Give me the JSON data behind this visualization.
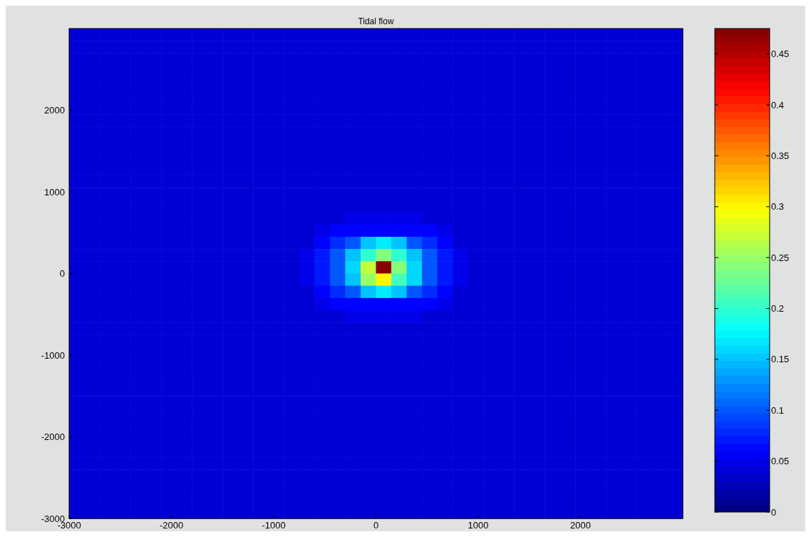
{
  "chart_data": {
    "type": "heatmap",
    "title": "Tidal flow",
    "x": [
      -2925,
      -2775,
      -2625,
      -2475,
      -2325,
      -2175,
      -2025,
      -1875,
      -1725,
      -1575,
      -1425,
      -1275,
      -1125,
      -975,
      -825,
      -675,
      -525,
      -375,
      -225,
      -75,
      75,
      225,
      375,
      525,
      675,
      825,
      975,
      1125,
      1275,
      1425,
      1575,
      1725,
      1875,
      2025,
      2175,
      2325,
      2475,
      2625,
      2775,
      2925
    ],
    "y": [
      2925,
      2775,
      2625,
      2475,
      2325,
      2175,
      2025,
      1875,
      1725,
      1575,
      1425,
      1275,
      1125,
      975,
      825,
      675,
      525,
      375,
      225,
      75,
      -75,
      -225,
      -375,
      -525,
      -675,
      -825,
      -975,
      -1125,
      -1275,
      -1425,
      -1575,
      -1725,
      -1875,
      -2025,
      -2175,
      -2325,
      -2475,
      -2625,
      -2775,
      -2925
    ],
    "xlim": [
      -3000,
      3000
    ],
    "xticks": [
      -3000,
      -2000,
      -1000,
      0,
      1000,
      2000
    ],
    "ylim": [
      -3000,
      3000
    ],
    "yticks": [
      -3000,
      -2000,
      -1000,
      0,
      1000,
      2000
    ],
    "clim": [
      0,
      0.475
    ],
    "cticks": [
      0,
      0.05,
      0.1,
      0.15,
      0.2,
      0.25,
      0.3,
      0.35,
      0.4,
      0.45
    ],
    "cells": [
      [
        0.04,
        0.04,
        0.04,
        0.04,
        0.04,
        0.04,
        0.04,
        0.04,
        0.04,
        0.04,
        0.04,
        0.04,
        0.04,
        0.04,
        0.04,
        0.04,
        0.04,
        0.04,
        0.04,
        0.04,
        0.04,
        0.04,
        0.04,
        0.04,
        0.04,
        0.04,
        0.04,
        0.04,
        0.04,
        0.04,
        0.04,
        0.04,
        0.04,
        0.04,
        0.04,
        0.04,
        0.04,
        0.04,
        0.04,
        0.04
      ],
      [
        0.04,
        0.04,
        0.04,
        0.04,
        0.04,
        0.04,
        0.04,
        0.04,
        0.04,
        0.04,
        0.04,
        0.04,
        0.04,
        0.04,
        0.04,
        0.04,
        0.04,
        0.04,
        0.04,
        0.04,
        0.04,
        0.04,
        0.04,
        0.04,
        0.04,
        0.04,
        0.04,
        0.04,
        0.04,
        0.04,
        0.04,
        0.04,
        0.04,
        0.04,
        0.04,
        0.04,
        0.04,
        0.04,
        0.04,
        0.04
      ],
      [
        0.04,
        0.04,
        0.04,
        0.04,
        0.04,
        0.04,
        0.04,
        0.04,
        0.04,
        0.04,
        0.04,
        0.04,
        0.04,
        0.04,
        0.04,
        0.04,
        0.04,
        0.04,
        0.04,
        0.04,
        0.04,
        0.04,
        0.04,
        0.04,
        0.04,
        0.04,
        0.04,
        0.04,
        0.04,
        0.04,
        0.04,
        0.04,
        0.04,
        0.04,
        0.04,
        0.04,
        0.04,
        0.04,
        0.04,
        0.04
      ],
      [
        0.04,
        0.04,
        0.04,
        0.04,
        0.04,
        0.04,
        0.04,
        0.04,
        0.04,
        0.04,
        0.04,
        0.04,
        0.04,
        0.04,
        0.04,
        0.04,
        0.04,
        0.04,
        0.04,
        0.04,
        0.04,
        0.04,
        0.04,
        0.04,
        0.04,
        0.04,
        0.04,
        0.04,
        0.04,
        0.04,
        0.04,
        0.04,
        0.04,
        0.04,
        0.04,
        0.04,
        0.04,
        0.04,
        0.04,
        0.04
      ],
      [
        0.04,
        0.04,
        0.04,
        0.04,
        0.04,
        0.04,
        0.04,
        0.04,
        0.04,
        0.04,
        0.04,
        0.04,
        0.04,
        0.04,
        0.04,
        0.04,
        0.04,
        0.04,
        0.04,
        0.04,
        0.04,
        0.04,
        0.04,
        0.04,
        0.04,
        0.04,
        0.04,
        0.04,
        0.04,
        0.04,
        0.04,
        0.04,
        0.04,
        0.04,
        0.04,
        0.04,
        0.04,
        0.04,
        0.04,
        0.04
      ],
      [
        0.04,
        0.04,
        0.04,
        0.04,
        0.04,
        0.04,
        0.04,
        0.04,
        0.04,
        0.04,
        0.04,
        0.04,
        0.04,
        0.04,
        0.04,
        0.04,
        0.04,
        0.04,
        0.04,
        0.04,
        0.04,
        0.04,
        0.04,
        0.04,
        0.04,
        0.04,
        0.04,
        0.04,
        0.04,
        0.04,
        0.04,
        0.04,
        0.04,
        0.04,
        0.04,
        0.04,
        0.04,
        0.04,
        0.04,
        0.04
      ],
      [
        0.04,
        0.04,
        0.04,
        0.04,
        0.04,
        0.04,
        0.04,
        0.04,
        0.04,
        0.04,
        0.04,
        0.04,
        0.04,
        0.04,
        0.04,
        0.04,
        0.04,
        0.04,
        0.04,
        0.04,
        0.04,
        0.04,
        0.04,
        0.04,
        0.04,
        0.04,
        0.04,
        0.04,
        0.04,
        0.04,
        0.04,
        0.04,
        0.04,
        0.04,
        0.04,
        0.04,
        0.04,
        0.04,
        0.04,
        0.04
      ],
      [
        0.04,
        0.04,
        0.04,
        0.04,
        0.04,
        0.04,
        0.04,
        0.04,
        0.04,
        0.04,
        0.04,
        0.04,
        0.04,
        0.04,
        0.04,
        0.04,
        0.04,
        0.04,
        0.04,
        0.04,
        0.04,
        0.04,
        0.04,
        0.04,
        0.04,
        0.04,
        0.04,
        0.04,
        0.04,
        0.04,
        0.04,
        0.04,
        0.04,
        0.04,
        0.04,
        0.04,
        0.04,
        0.04,
        0.04,
        0.04
      ],
      [
        0.04,
        0.04,
        0.04,
        0.04,
        0.04,
        0.04,
        0.04,
        0.04,
        0.04,
        0.04,
        0.04,
        0.04,
        0.04,
        0.04,
        0.04,
        0.04,
        0.04,
        0.04,
        0.04,
        0.04,
        0.04,
        0.04,
        0.04,
        0.04,
        0.04,
        0.04,
        0.04,
        0.04,
        0.04,
        0.04,
        0.04,
        0.04,
        0.04,
        0.04,
        0.04,
        0.04,
        0.04,
        0.04,
        0.04,
        0.04
      ],
      [
        0.04,
        0.04,
        0.04,
        0.04,
        0.04,
        0.04,
        0.04,
        0.04,
        0.04,
        0.04,
        0.04,
        0.04,
        0.04,
        0.04,
        0.04,
        0.04,
        0.04,
        0.04,
        0.04,
        0.04,
        0.04,
        0.04,
        0.04,
        0.04,
        0.04,
        0.04,
        0.04,
        0.04,
        0.04,
        0.04,
        0.04,
        0.04,
        0.04,
        0.04,
        0.04,
        0.04,
        0.04,
        0.04,
        0.04,
        0.04
      ],
      [
        0.04,
        0.04,
        0.04,
        0.04,
        0.04,
        0.04,
        0.04,
        0.04,
        0.04,
        0.04,
        0.04,
        0.04,
        0.04,
        0.04,
        0.04,
        0.04,
        0.04,
        0.04,
        0.04,
        0.04,
        0.04,
        0.04,
        0.04,
        0.04,
        0.04,
        0.04,
        0.04,
        0.04,
        0.04,
        0.04,
        0.04,
        0.04,
        0.04,
        0.04,
        0.04,
        0.04,
        0.04,
        0.04,
        0.04,
        0.04
      ],
      [
        0.04,
        0.04,
        0.04,
        0.04,
        0.04,
        0.04,
        0.04,
        0.04,
        0.04,
        0.04,
        0.04,
        0.04,
        0.04,
        0.04,
        0.04,
        0.04,
        0.04,
        0.04,
        0.04,
        0.04,
        0.04,
        0.04,
        0.04,
        0.04,
        0.04,
        0.04,
        0.04,
        0.04,
        0.04,
        0.04,
        0.04,
        0.04,
        0.04,
        0.04,
        0.04,
        0.04,
        0.04,
        0.04,
        0.04,
        0.04
      ],
      [
        0.04,
        0.04,
        0.04,
        0.04,
        0.04,
        0.04,
        0.04,
        0.04,
        0.04,
        0.04,
        0.04,
        0.04,
        0.04,
        0.04,
        0.04,
        0.04,
        0.04,
        0.04,
        0.04,
        0.04,
        0.04,
        0.04,
        0.04,
        0.04,
        0.04,
        0.04,
        0.04,
        0.04,
        0.04,
        0.04,
        0.04,
        0.04,
        0.04,
        0.04,
        0.04,
        0.04,
        0.04,
        0.04,
        0.04,
        0.04
      ],
      [
        0.04,
        0.04,
        0.04,
        0.04,
        0.04,
        0.04,
        0.04,
        0.04,
        0.04,
        0.04,
        0.04,
        0.04,
        0.04,
        0.04,
        0.04,
        0.04,
        0.04,
        0.04,
        0.04,
        0.04,
        0.04,
        0.04,
        0.04,
        0.04,
        0.04,
        0.04,
        0.04,
        0.04,
        0.04,
        0.04,
        0.04,
        0.04,
        0.04,
        0.04,
        0.04,
        0.04,
        0.04,
        0.04,
        0.04,
        0.04
      ],
      [
        0.04,
        0.04,
        0.04,
        0.04,
        0.04,
        0.04,
        0.04,
        0.04,
        0.04,
        0.04,
        0.04,
        0.04,
        0.04,
        0.04,
        0.04,
        0.04,
        0.04,
        0.04,
        0.04,
        0.04,
        0.04,
        0.04,
        0.04,
        0.04,
        0.04,
        0.04,
        0.04,
        0.04,
        0.04,
        0.04,
        0.04,
        0.04,
        0.04,
        0.04,
        0.04,
        0.04,
        0.04,
        0.04,
        0.04,
        0.04
      ],
      [
        0.04,
        0.04,
        0.04,
        0.04,
        0.04,
        0.04,
        0.04,
        0.04,
        0.04,
        0.04,
        0.04,
        0.04,
        0.04,
        0.04,
        0.04,
        0.04,
        0.04,
        0.04,
        0.05,
        0.05,
        0.05,
        0.05,
        0.05,
        0.04,
        0.04,
        0.04,
        0.04,
        0.04,
        0.04,
        0.04,
        0.04,
        0.04,
        0.04,
        0.04,
        0.04,
        0.04,
        0.04,
        0.04,
        0.04,
        0.04
      ],
      [
        0.04,
        0.04,
        0.04,
        0.04,
        0.04,
        0.04,
        0.04,
        0.04,
        0.04,
        0.04,
        0.04,
        0.04,
        0.04,
        0.04,
        0.04,
        0.04,
        0.05,
        0.06,
        0.06,
        0.06,
        0.06,
        0.06,
        0.06,
        0.06,
        0.05,
        0.04,
        0.04,
        0.04,
        0.04,
        0.04,
        0.04,
        0.04,
        0.04,
        0.04,
        0.04,
        0.04,
        0.04,
        0.04,
        0.04,
        0.04
      ],
      [
        0.04,
        0.04,
        0.04,
        0.04,
        0.04,
        0.04,
        0.04,
        0.04,
        0.04,
        0.04,
        0.04,
        0.04,
        0.04,
        0.04,
        0.04,
        0.04,
        0.06,
        0.08,
        0.1,
        0.15,
        0.17,
        0.15,
        0.1,
        0.08,
        0.06,
        0.04,
        0.04,
        0.04,
        0.04,
        0.04,
        0.04,
        0.04,
        0.04,
        0.04,
        0.04,
        0.04,
        0.04,
        0.04,
        0.04,
        0.04
      ],
      [
        0.04,
        0.04,
        0.04,
        0.04,
        0.04,
        0.04,
        0.04,
        0.04,
        0.04,
        0.04,
        0.04,
        0.04,
        0.04,
        0.04,
        0.04,
        0.05,
        0.07,
        0.1,
        0.15,
        0.2,
        0.24,
        0.2,
        0.15,
        0.1,
        0.07,
        0.05,
        0.04,
        0.04,
        0.04,
        0.04,
        0.04,
        0.04,
        0.04,
        0.04,
        0.04,
        0.04,
        0.04,
        0.04,
        0.04,
        0.04
      ],
      [
        0.04,
        0.04,
        0.04,
        0.04,
        0.04,
        0.04,
        0.04,
        0.04,
        0.04,
        0.04,
        0.04,
        0.04,
        0.04,
        0.04,
        0.04,
        0.05,
        0.07,
        0.1,
        0.16,
        0.27,
        0.47,
        0.24,
        0.16,
        0.1,
        0.07,
        0.05,
        0.04,
        0.04,
        0.04,
        0.04,
        0.04,
        0.04,
        0.04,
        0.04,
        0.04,
        0.04,
        0.04,
        0.04,
        0.04,
        0.04
      ],
      [
        0.04,
        0.04,
        0.04,
        0.04,
        0.04,
        0.04,
        0.04,
        0.04,
        0.04,
        0.04,
        0.04,
        0.04,
        0.04,
        0.04,
        0.04,
        0.05,
        0.07,
        0.1,
        0.15,
        0.25,
        0.3,
        0.21,
        0.16,
        0.1,
        0.07,
        0.05,
        0.04,
        0.04,
        0.04,
        0.04,
        0.04,
        0.04,
        0.04,
        0.04,
        0.04,
        0.04,
        0.04,
        0.04,
        0.04,
        0.04
      ],
      [
        0.04,
        0.04,
        0.04,
        0.04,
        0.04,
        0.04,
        0.04,
        0.04,
        0.04,
        0.04,
        0.04,
        0.04,
        0.04,
        0.04,
        0.04,
        0.04,
        0.06,
        0.08,
        0.1,
        0.15,
        0.17,
        0.15,
        0.1,
        0.08,
        0.06,
        0.04,
        0.04,
        0.04,
        0.04,
        0.04,
        0.04,
        0.04,
        0.04,
        0.04,
        0.04,
        0.04,
        0.04,
        0.04,
        0.04,
        0.04
      ],
      [
        0.04,
        0.04,
        0.04,
        0.04,
        0.04,
        0.04,
        0.04,
        0.04,
        0.04,
        0.04,
        0.04,
        0.04,
        0.04,
        0.04,
        0.04,
        0.04,
        0.05,
        0.06,
        0.06,
        0.06,
        0.06,
        0.06,
        0.06,
        0.06,
        0.05,
        0.04,
        0.04,
        0.04,
        0.04,
        0.04,
        0.04,
        0.04,
        0.04,
        0.04,
        0.04,
        0.04,
        0.04,
        0.04,
        0.04,
        0.04
      ],
      [
        0.04,
        0.04,
        0.04,
        0.04,
        0.04,
        0.04,
        0.04,
        0.04,
        0.04,
        0.04,
        0.04,
        0.04,
        0.04,
        0.04,
        0.04,
        0.04,
        0.04,
        0.04,
        0.05,
        0.05,
        0.05,
        0.05,
        0.05,
        0.04,
        0.04,
        0.04,
        0.04,
        0.04,
        0.04,
        0.04,
        0.04,
        0.04,
        0.04,
        0.04,
        0.04,
        0.04,
        0.04,
        0.04,
        0.04,
        0.04
      ],
      [
        0.04,
        0.04,
        0.04,
        0.04,
        0.04,
        0.04,
        0.04,
        0.04,
        0.04,
        0.04,
        0.04,
        0.04,
        0.04,
        0.04,
        0.04,
        0.04,
        0.04,
        0.04,
        0.04,
        0.04,
        0.04,
        0.04,
        0.04,
        0.04,
        0.04,
        0.04,
        0.04,
        0.04,
        0.04,
        0.04,
        0.04,
        0.04,
        0.04,
        0.04,
        0.04,
        0.04,
        0.04,
        0.04,
        0.04,
        0.04
      ],
      [
        0.04,
        0.04,
        0.04,
        0.04,
        0.04,
        0.04,
        0.04,
        0.04,
        0.04,
        0.04,
        0.04,
        0.04,
        0.04,
        0.04,
        0.04,
        0.04,
        0.04,
        0.04,
        0.04,
        0.04,
        0.04,
        0.04,
        0.04,
        0.04,
        0.04,
        0.04,
        0.04,
        0.04,
        0.04,
        0.04,
        0.04,
        0.04,
        0.04,
        0.04,
        0.04,
        0.04,
        0.04,
        0.04,
        0.04,
        0.04
      ],
      [
        0.04,
        0.04,
        0.04,
        0.04,
        0.04,
        0.04,
        0.04,
        0.04,
        0.04,
        0.04,
        0.04,
        0.04,
        0.04,
        0.04,
        0.04,
        0.04,
        0.04,
        0.04,
        0.04,
        0.04,
        0.04,
        0.04,
        0.04,
        0.04,
        0.04,
        0.04,
        0.04,
        0.04,
        0.04,
        0.04,
        0.04,
        0.04,
        0.04,
        0.04,
        0.04,
        0.04,
        0.04,
        0.04,
        0.04,
        0.04
      ],
      [
        0.04,
        0.04,
        0.04,
        0.04,
        0.04,
        0.04,
        0.04,
        0.04,
        0.04,
        0.04,
        0.04,
        0.04,
        0.04,
        0.04,
        0.04,
        0.04,
        0.04,
        0.04,
        0.04,
        0.04,
        0.04,
        0.04,
        0.04,
        0.04,
        0.04,
        0.04,
        0.04,
        0.04,
        0.04,
        0.04,
        0.04,
        0.04,
        0.04,
        0.04,
        0.04,
        0.04,
        0.04,
        0.04,
        0.04,
        0.04
      ],
      [
        0.04,
        0.04,
        0.04,
        0.04,
        0.04,
        0.04,
        0.04,
        0.04,
        0.04,
        0.04,
        0.04,
        0.04,
        0.04,
        0.04,
        0.04,
        0.04,
        0.04,
        0.04,
        0.04,
        0.04,
        0.04,
        0.04,
        0.04,
        0.04,
        0.04,
        0.04,
        0.04,
        0.04,
        0.04,
        0.04,
        0.04,
        0.04,
        0.04,
        0.04,
        0.04,
        0.04,
        0.04,
        0.04,
        0.04,
        0.04
      ],
      [
        0.04,
        0.04,
        0.04,
        0.04,
        0.04,
        0.04,
        0.04,
        0.04,
        0.04,
        0.04,
        0.04,
        0.04,
        0.04,
        0.04,
        0.04,
        0.04,
        0.04,
        0.04,
        0.04,
        0.04,
        0.04,
        0.04,
        0.04,
        0.04,
        0.04,
        0.04,
        0.04,
        0.04,
        0.04,
        0.04,
        0.04,
        0.04,
        0.04,
        0.04,
        0.04,
        0.04,
        0.04,
        0.04,
        0.04,
        0.04
      ],
      [
        0.04,
        0.04,
        0.04,
        0.04,
        0.04,
        0.04,
        0.04,
        0.04,
        0.04,
        0.04,
        0.04,
        0.04,
        0.04,
        0.04,
        0.04,
        0.04,
        0.04,
        0.04,
        0.04,
        0.04,
        0.04,
        0.04,
        0.04,
        0.04,
        0.04,
        0.04,
        0.04,
        0.04,
        0.04,
        0.04,
        0.04,
        0.04,
        0.04,
        0.04,
        0.04,
        0.04,
        0.04,
        0.04,
        0.04,
        0.04
      ],
      [
        0.04,
        0.04,
        0.04,
        0.04,
        0.04,
        0.04,
        0.04,
        0.04,
        0.04,
        0.04,
        0.04,
        0.04,
        0.04,
        0.04,
        0.04,
        0.04,
        0.04,
        0.04,
        0.04,
        0.04,
        0.04,
        0.04,
        0.04,
        0.04,
        0.04,
        0.04,
        0.04,
        0.04,
        0.04,
        0.04,
        0.04,
        0.04,
        0.04,
        0.04,
        0.04,
        0.04,
        0.04,
        0.04,
        0.04,
        0.04
      ],
      [
        0.04,
        0.04,
        0.04,
        0.04,
        0.04,
        0.04,
        0.04,
        0.04,
        0.04,
        0.04,
        0.04,
        0.04,
        0.04,
        0.04,
        0.04,
        0.04,
        0.04,
        0.04,
        0.04,
        0.04,
        0.04,
        0.04,
        0.04,
        0.04,
        0.04,
        0.04,
        0.04,
        0.04,
        0.04,
        0.04,
        0.04,
        0.04,
        0.04,
        0.04,
        0.04,
        0.04,
        0.04,
        0.04,
        0.04,
        0.04
      ],
      [
        0.04,
        0.04,
        0.04,
        0.04,
        0.04,
        0.04,
        0.04,
        0.04,
        0.04,
        0.04,
        0.04,
        0.04,
        0.04,
        0.04,
        0.04,
        0.04,
        0.04,
        0.04,
        0.04,
        0.04,
        0.04,
        0.04,
        0.04,
        0.04,
        0.04,
        0.04,
        0.04,
        0.04,
        0.04,
        0.04,
        0.04,
        0.04,
        0.04,
        0.04,
        0.04,
        0.04,
        0.04,
        0.04,
        0.04,
        0.04
      ],
      [
        0.04,
        0.04,
        0.04,
        0.04,
        0.04,
        0.04,
        0.04,
        0.04,
        0.04,
        0.04,
        0.04,
        0.04,
        0.04,
        0.04,
        0.04,
        0.04,
        0.04,
        0.04,
        0.04,
        0.04,
        0.04,
        0.04,
        0.04,
        0.04,
        0.04,
        0.04,
        0.04,
        0.04,
        0.04,
        0.04,
        0.04,
        0.04,
        0.04,
        0.04,
        0.04,
        0.04,
        0.04,
        0.04,
        0.04,
        0.04
      ],
      [
        0.04,
        0.04,
        0.04,
        0.04,
        0.04,
        0.04,
        0.04,
        0.04,
        0.04,
        0.04,
        0.04,
        0.04,
        0.04,
        0.04,
        0.04,
        0.04,
        0.04,
        0.04,
        0.04,
        0.04,
        0.04,
        0.04,
        0.04,
        0.04,
        0.04,
        0.04,
        0.04,
        0.04,
        0.04,
        0.04,
        0.04,
        0.04,
        0.04,
        0.04,
        0.04,
        0.04,
        0.04,
        0.04,
        0.04,
        0.04
      ],
      [
        0.04,
        0.04,
        0.04,
        0.04,
        0.04,
        0.04,
        0.04,
        0.04,
        0.04,
        0.04,
        0.04,
        0.04,
        0.04,
        0.04,
        0.04,
        0.04,
        0.04,
        0.04,
        0.04,
        0.04,
        0.04,
        0.04,
        0.04,
        0.04,
        0.04,
        0.04,
        0.04,
        0.04,
        0.04,
        0.04,
        0.04,
        0.04,
        0.04,
        0.04,
        0.04,
        0.04,
        0.04,
        0.04,
        0.04,
        0.04
      ],
      [
        0.04,
        0.04,
        0.04,
        0.04,
        0.04,
        0.04,
        0.04,
        0.04,
        0.04,
        0.04,
        0.04,
        0.04,
        0.04,
        0.04,
        0.04,
        0.04,
        0.04,
        0.04,
        0.04,
        0.04,
        0.04,
        0.04,
        0.04,
        0.04,
        0.04,
        0.04,
        0.04,
        0.04,
        0.04,
        0.04,
        0.04,
        0.04,
        0.04,
        0.04,
        0.04,
        0.04,
        0.04,
        0.04,
        0.04,
        0.04
      ],
      [
        0.04,
        0.04,
        0.04,
        0.04,
        0.04,
        0.04,
        0.04,
        0.04,
        0.04,
        0.04,
        0.04,
        0.04,
        0.04,
        0.04,
        0.04,
        0.04,
        0.04,
        0.04,
        0.04,
        0.04,
        0.04,
        0.04,
        0.04,
        0.04,
        0.04,
        0.04,
        0.04,
        0.04,
        0.04,
        0.04,
        0.04,
        0.04,
        0.04,
        0.04,
        0.04,
        0.04,
        0.04,
        0.04,
        0.04,
        0.04
      ],
      [
        0.04,
        0.04,
        0.04,
        0.04,
        0.04,
        0.04,
        0.04,
        0.04,
        0.04,
        0.04,
        0.04,
        0.04,
        0.04,
        0.04,
        0.04,
        0.04,
        0.04,
        0.04,
        0.04,
        0.04,
        0.04,
        0.04,
        0.04,
        0.04,
        0.04,
        0.04,
        0.04,
        0.04,
        0.04,
        0.04,
        0.04,
        0.04,
        0.04,
        0.04,
        0.04,
        0.04,
        0.04,
        0.04,
        0.04,
        0.04
      ]
    ]
  }
}
